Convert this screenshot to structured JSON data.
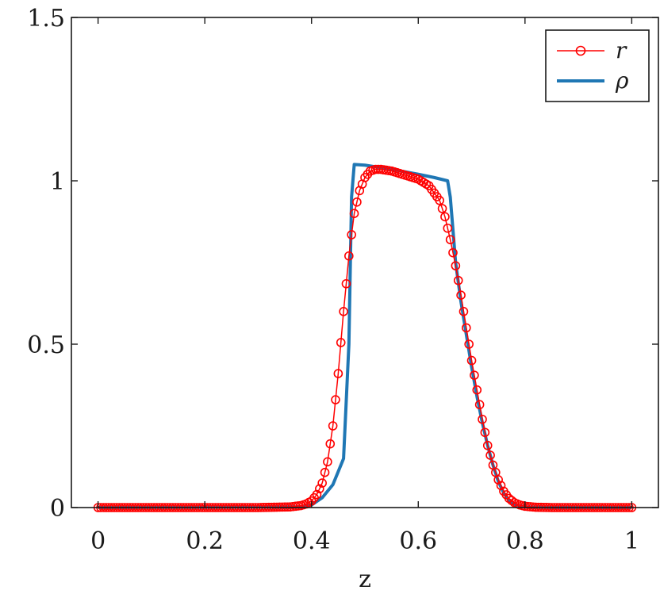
{
  "chart_data": {
    "type": "line",
    "title": "",
    "xlabel": "z",
    "ylabel": "",
    "xlim": [
      -0.05,
      1.05
    ],
    "ylim": [
      0,
      1.5
    ],
    "xticks": [
      0,
      0.2,
      0.4,
      0.6,
      0.8,
      1
    ],
    "xtick_labels": [
      "0",
      "0.2",
      "0.4",
      "0.6",
      "0.8",
      "1"
    ],
    "yticks": [
      0,
      0.5,
      1,
      1.5
    ],
    "ytick_labels": [
      "0",
      "0.5",
      "1",
      "1.5"
    ],
    "grid": false,
    "legend_position": "top-right",
    "series": [
      {
        "name": "r",
        "style": "line-with-circle-markers",
        "color": "#ff0000",
        "x": [
          0,
          0.3,
          0.36,
          0.38,
          0.39,
          0.4,
          0.41,
          0.42,
          0.43,
          0.44,
          0.45,
          0.46,
          0.47,
          0.48,
          0.49,
          0.5,
          0.51,
          0.52,
          0.53,
          0.55,
          0.57,
          0.6,
          0.62,
          0.64,
          0.65,
          0.66,
          0.67,
          0.68,
          0.69,
          0.7,
          0.71,
          0.72,
          0.73,
          0.74,
          0.75,
          0.76,
          0.77,
          0.78,
          0.79,
          0.8,
          0.82,
          0.85,
          1
        ],
        "y": [
          0,
          0,
          0.002,
          0.006,
          0.011,
          0.02,
          0.04,
          0.075,
          0.14,
          0.25,
          0.41,
          0.6,
          0.77,
          0.9,
          0.97,
          1.01,
          1.03,
          1.035,
          1.035,
          1.03,
          1.02,
          1.005,
          0.985,
          0.94,
          0.89,
          0.82,
          0.74,
          0.65,
          0.55,
          0.45,
          0.36,
          0.27,
          0.19,
          0.13,
          0.085,
          0.05,
          0.028,
          0.015,
          0.008,
          0.004,
          0.001,
          0,
          0
        ]
      },
      {
        "name": "ρ",
        "style": "line",
        "color": "#1f77b4",
        "x": [
          0,
          0.38,
          0.4,
          0.42,
          0.44,
          0.46,
          0.47,
          0.475,
          0.48,
          0.5,
          0.55,
          0.6,
          0.63,
          0.655,
          0.66,
          0.665,
          0.67,
          0.68,
          0.69,
          0.7,
          0.71,
          0.72,
          0.73,
          0.74,
          0.75,
          0.76,
          0.77,
          0.78,
          0.8,
          0.85,
          1
        ],
        "y": [
          0,
          0.002,
          0.008,
          0.03,
          0.07,
          0.15,
          0.5,
          0.95,
          1.05,
          1.048,
          1.035,
          1.02,
          1.01,
          1.0,
          0.95,
          0.85,
          0.75,
          0.63,
          0.53,
          0.43,
          0.34,
          0.26,
          0.19,
          0.13,
          0.08,
          0.045,
          0.022,
          0.01,
          0.002,
          0,
          0
        ]
      }
    ],
    "legend": {
      "entries": [
        "r",
        "ρ"
      ]
    }
  }
}
